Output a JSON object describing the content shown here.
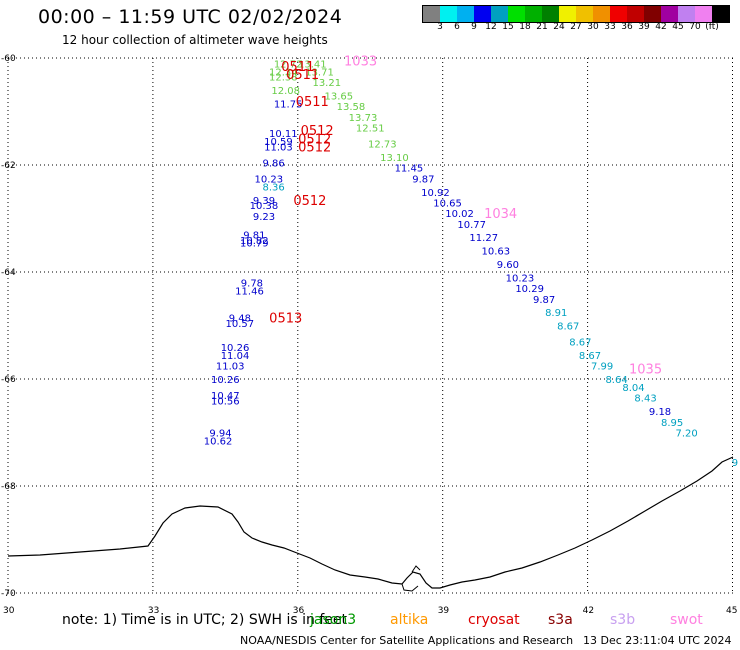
{
  "header": {
    "title": "00:00 – 11:59 UTC 02/02/2024",
    "subtitle": "12 hour collection of altimeter wave heights"
  },
  "colorbar": {
    "colors": [
      "#808080",
      "#00f0f0",
      "#00b0f0",
      "#0000f0",
      "#00a0c0",
      "#00e000",
      "#00b000",
      "#008000",
      "#f0f000",
      "#f0c000",
      "#f09000",
      "#f00000",
      "#c00000",
      "#800000",
      "#a000a0",
      "#c080f0",
      "#f080f0",
      "#000000"
    ],
    "labels": [
      "3",
      "6",
      "9",
      "12",
      "15",
      "18",
      "21",
      "24",
      "27",
      "30",
      "33",
      "36",
      "39",
      "42",
      "45",
      "70",
      "(ft)"
    ]
  },
  "axes": {
    "lat_labels": [
      "-60",
      "-62",
      "-64",
      "-66",
      "-68",
      "-70"
    ],
    "lon_labels": [
      "30",
      "33",
      "36",
      "39",
      "42",
      "45"
    ]
  },
  "tracks": {
    "track_a": [
      {
        "lon": 35.8,
        "lat": -60.1,
        "v": "12.72",
        "c": "#66cc44"
      },
      {
        "lon": 35.7,
        "lat": -60.25,
        "v": "12.34",
        "c": "#66cc44"
      },
      {
        "lon": 35.7,
        "lat": -60.35,
        "v": "12.38",
        "c": "#66cc44"
      },
      {
        "lon": 35.75,
        "lat": -60.6,
        "v": "12.08",
        "c": "#66cc44"
      },
      {
        "lon": 35.8,
        "lat": -60.85,
        "v": "11.75",
        "c": "#0000cc"
      },
      {
        "lon": 35.7,
        "lat": -61.4,
        "v": "10.11",
        "c": "#0000cc"
      },
      {
        "lon": 35.6,
        "lat": -61.55,
        "v": "10.59",
        "c": "#0000cc"
      },
      {
        "lon": 35.6,
        "lat": -61.65,
        "v": "11.03",
        "c": "#0000cc"
      },
      {
        "lon": 35.5,
        "lat": -61.95,
        "v": "9.86",
        "c": "#0000cc"
      },
      {
        "lon": 35.4,
        "lat": -62.25,
        "v": "10.23",
        "c": "#0000cc"
      },
      {
        "lon": 35.5,
        "lat": -62.4,
        "v": "8.36",
        "c": "#00a0c0"
      },
      {
        "lon": 35.3,
        "lat": -62.65,
        "v": "9.39",
        "c": "#0000cc"
      },
      {
        "lon": 35.3,
        "lat": -62.75,
        "v": "10.38",
        "c": "#0000cc"
      },
      {
        "lon": 35.3,
        "lat": -62.95,
        "v": "9.23",
        "c": "#0000cc"
      },
      {
        "lon": 35.1,
        "lat": -63.3,
        "v": "9.81",
        "c": "#0000cc"
      },
      {
        "lon": 35.1,
        "lat": -63.4,
        "v": "10.82",
        "c": "#0000cc"
      },
      {
        "lon": 35.1,
        "lat": -63.45,
        "v": "10.79",
        "c": "#0000cc"
      },
      {
        "lon": 35.05,
        "lat": -64.2,
        "v": "9.78",
        "c": "#0000cc"
      },
      {
        "lon": 35.0,
        "lat": -64.35,
        "v": "11.46",
        "c": "#0000cc"
      },
      {
        "lon": 34.8,
        "lat": -64.85,
        "v": "9.48",
        "c": "#0000cc"
      },
      {
        "lon": 34.8,
        "lat": -64.95,
        "v": "10.57",
        "c": "#0000cc"
      },
      {
        "lon": 34.7,
        "lat": -65.4,
        "v": "10.26",
        "c": "#0000cc"
      },
      {
        "lon": 34.7,
        "lat": -65.55,
        "v": "11.04",
        "c": "#0000cc"
      },
      {
        "lon": 34.6,
        "lat": -65.75,
        "v": "11.03",
        "c": "#0000cc"
      },
      {
        "lon": 34.5,
        "lat": -66.0,
        "v": "10.26",
        "c": "#0000cc"
      },
      {
        "lon": 34.5,
        "lat": -66.3,
        "v": "10.47",
        "c": "#0000cc"
      },
      {
        "lon": 34.5,
        "lat": -66.4,
        "v": "10.56",
        "c": "#0000cc"
      },
      {
        "lon": 34.4,
        "lat": -67.0,
        "v": "9.94",
        "c": "#0000cc"
      },
      {
        "lon": 34.35,
        "lat": -67.15,
        "v": "10.62",
        "c": "#0000cc"
      }
    ],
    "track_b": [
      {
        "lon": 36.3,
        "lat": -60.1,
        "v": "13.41",
        "c": "#66cc44"
      },
      {
        "lon": 36.45,
        "lat": -60.25,
        "v": "13.71",
        "c": "#66cc44"
      },
      {
        "lon": 36.6,
        "lat": -60.45,
        "v": "13.21",
        "c": "#66cc44"
      },
      {
        "lon": 36.85,
        "lat": -60.7,
        "v": "13.65",
        "c": "#66cc44"
      },
      {
        "lon": 37.1,
        "lat": -60.9,
        "v": "13.58",
        "c": "#66cc44"
      },
      {
        "lon": 37.35,
        "lat": -61.1,
        "v": "13.73",
        "c": "#66cc44"
      },
      {
        "lon": 37.5,
        "lat": -61.3,
        "v": "12.51",
        "c": "#66cc44"
      },
      {
        "lon": 37.75,
        "lat": -61.6,
        "v": "12.73",
        "c": "#66cc44"
      },
      {
        "lon": 38.0,
        "lat": -61.85,
        "v": "13.10",
        "c": "#66cc44"
      },
      {
        "lon": 38.3,
        "lat": -62.05,
        "v": "11.45",
        "c": "#0000cc"
      },
      {
        "lon": 38.6,
        "lat": -62.25,
        "v": "9.87",
        "c": "#0000cc"
      },
      {
        "lon": 38.85,
        "lat": -62.5,
        "v": "10.92",
        "c": "#0000cc"
      },
      {
        "lon": 39.1,
        "lat": -62.7,
        "v": "10.65",
        "c": "#0000cc"
      },
      {
        "lon": 39.35,
        "lat": -62.9,
        "v": "10.02",
        "c": "#0000cc"
      },
      {
        "lon": 39.6,
        "lat": -63.1,
        "v": "10.77",
        "c": "#0000cc"
      },
      {
        "lon": 39.85,
        "lat": -63.35,
        "v": "11.27",
        "c": "#0000cc"
      },
      {
        "lon": 40.1,
        "lat": -63.6,
        "v": "10.63",
        "c": "#0000cc"
      },
      {
        "lon": 40.35,
        "lat": -63.85,
        "v": "9.60",
        "c": "#0000cc"
      },
      {
        "lon": 40.6,
        "lat": -64.1,
        "v": "10.23",
        "c": "#0000cc"
      },
      {
        "lon": 40.8,
        "lat": -64.3,
        "v": "10.29",
        "c": "#0000cc"
      },
      {
        "lon": 41.1,
        "lat": -64.5,
        "v": "9.87",
        "c": "#0000cc"
      },
      {
        "lon": 41.35,
        "lat": -64.75,
        "v": "8.91",
        "c": "#00a0c0"
      },
      {
        "lon": 41.6,
        "lat": -65.0,
        "v": "8.67",
        "c": "#00a0c0"
      },
      {
        "lon": 41.85,
        "lat": -65.3,
        "v": "8.67",
        "c": "#00a0c0"
      },
      {
        "lon": 42.05,
        "lat": -65.55,
        "v": "8.67",
        "c": "#00a0c0"
      },
      {
        "lon": 42.3,
        "lat": -65.75,
        "v": "7.99",
        "c": "#00a0c0"
      },
      {
        "lon": 42.6,
        "lat": -66.0,
        "v": "8.64",
        "c": "#00a0c0"
      },
      {
        "lon": 42.95,
        "lat": -66.15,
        "v": "8.04",
        "c": "#00a0c0"
      },
      {
        "lon": 43.2,
        "lat": -66.35,
        "v": "8.43",
        "c": "#00a0c0"
      },
      {
        "lon": 43.5,
        "lat": -66.6,
        "v": "9.18",
        "c": "#0000cc"
      },
      {
        "lon": 43.75,
        "lat": -66.8,
        "v": "8.95",
        "c": "#00a0c0"
      },
      {
        "lon": 44.05,
        "lat": -67.0,
        "v": "7.20",
        "c": "#00a0c0"
      },
      {
        "lon": 45.05,
        "lat": -67.55,
        "v": "9",
        "c": "#00a0c0"
      }
    ]
  },
  "time_labels": [
    {
      "lon": 36.0,
      "lat": -60.15,
      "t": "0511",
      "c": "#dd0000"
    },
    {
      "lon": 36.1,
      "lat": -60.3,
      "t": "0511",
      "c": "#dd0000"
    },
    {
      "lon": 36.3,
      "lat": -60.8,
      "t": "0511",
      "c": "#dd0000"
    },
    {
      "lon": 36.4,
      "lat": -61.35,
      "t": "0512",
      "c": "#dd0000"
    },
    {
      "lon": 36.35,
      "lat": -61.5,
      "t": "0512",
      "c": "#dd0000"
    },
    {
      "lon": 36.35,
      "lat": -61.65,
      "t": "0512",
      "c": "#dd0000"
    },
    {
      "lon": 36.25,
      "lat": -62.65,
      "t": "0512",
      "c": "#dd0000"
    },
    {
      "lon": 35.75,
      "lat": -64.85,
      "t": "0513",
      "c": "#dd0000"
    },
    {
      "lon": 37.3,
      "lat": -60.05,
      "t": "1033",
      "c": "#ff80e0"
    },
    {
      "lon": 40.2,
      "lat": -62.9,
      "t": "1034",
      "c": "#ff80e0"
    },
    {
      "lon": 43.2,
      "lat": -65.8,
      "t": "1035",
      "c": "#ff80e0"
    }
  ],
  "footer": {
    "note": "note: 1) Time is in UTC; 2) SWH is in feet",
    "satellites": [
      {
        "name": "jason3",
        "color": "#009900"
      },
      {
        "name": "altika",
        "color": "#ff9900"
      },
      {
        "name": "cryosat",
        "color": "#dd0000"
      },
      {
        "name": "s3a",
        "color": "#880000"
      },
      {
        "name": "s3b",
        "color": "#c8a0f0"
      },
      {
        "name": "swot",
        "color": "#ff80e0"
      }
    ],
    "credit": "NOAA/NESDIS Center for Satellite Applications and Research",
    "timestamp": "13 Dec 23:11:04 UTC 2024"
  }
}
